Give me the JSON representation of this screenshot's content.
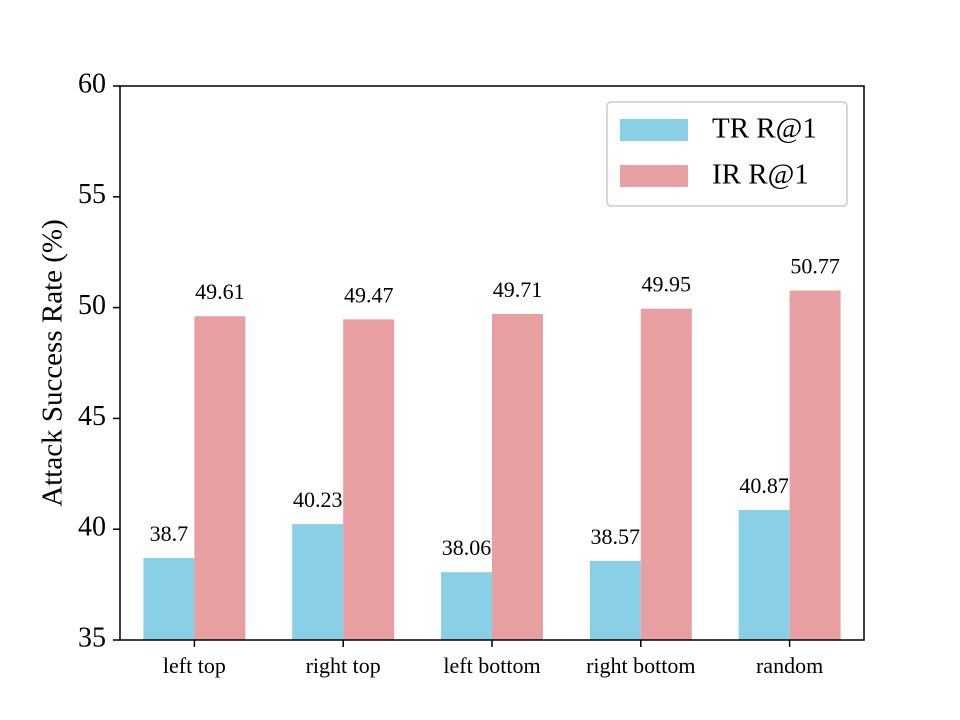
{
  "chart_data": {
    "type": "bar",
    "categories": [
      "left top",
      "right top",
      "left bottom",
      "right bottom",
      "random"
    ],
    "series": [
      {
        "name": "TR R@1",
        "values": [
          38.7,
          40.23,
          38.06,
          38.57,
          40.87
        ],
        "labels": [
          "38.7",
          "40.23",
          "38.06",
          "38.57",
          "40.87"
        ],
        "color": "#89cfe6"
      },
      {
        "name": "IR R@1",
        "values": [
          49.61,
          49.47,
          49.71,
          49.95,
          50.77
        ],
        "labels": [
          "49.61",
          "49.47",
          "49.71",
          "49.95",
          "50.77"
        ],
        "color": "#e89fa1"
      }
    ],
    "title": "",
    "xlabel": "",
    "ylabel": "Attack Success Rate (%)",
    "ylim": [
      35,
      60
    ],
    "yticks": [
      35,
      40,
      45,
      50,
      55,
      60
    ],
    "ytick_labels": [
      "35",
      "40",
      "45",
      "50",
      "55",
      "60"
    ],
    "grid": false,
    "legend": {
      "location": "top-right"
    }
  }
}
